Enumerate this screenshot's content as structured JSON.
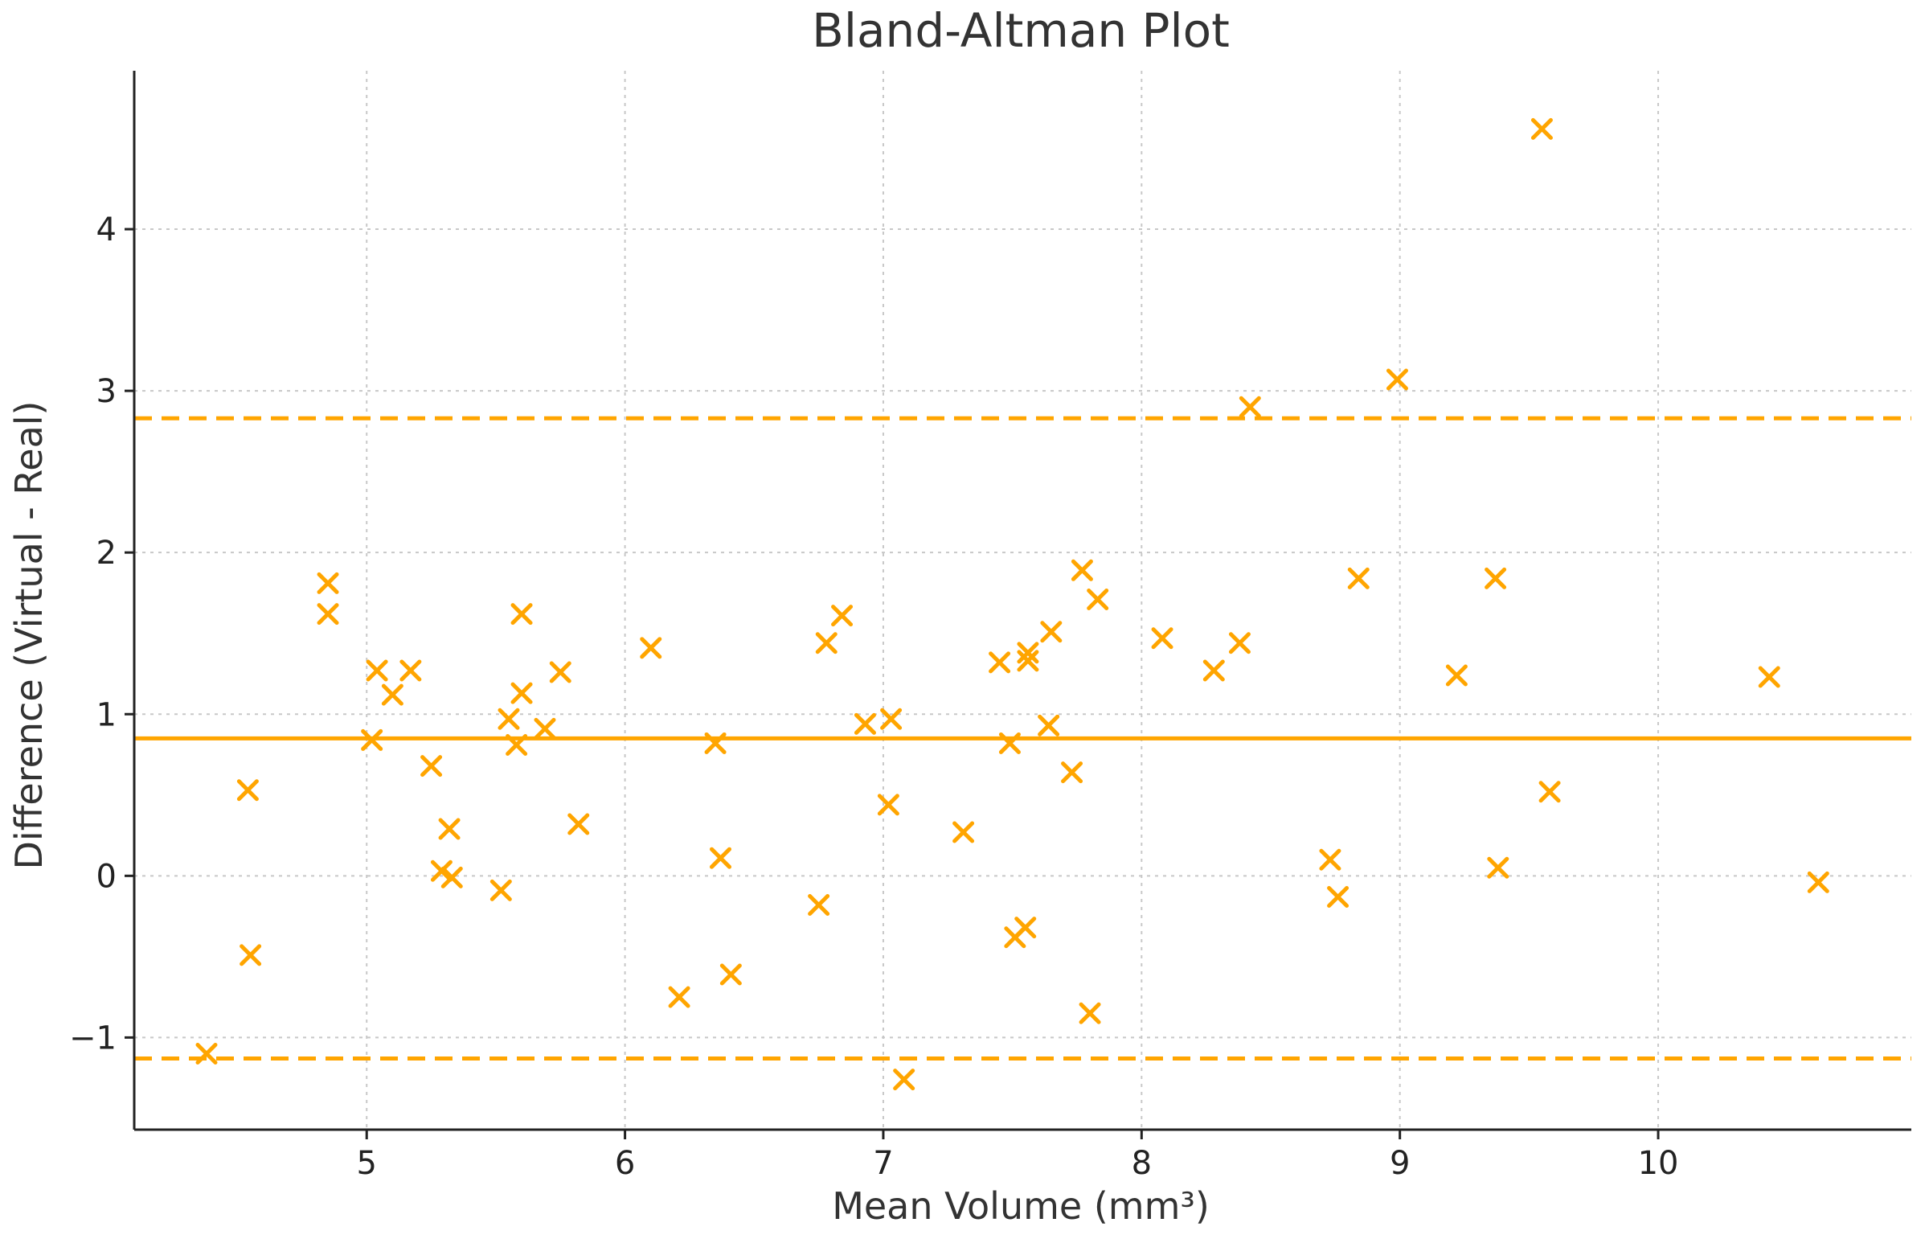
{
  "chart_data": {
    "type": "scatter",
    "title": "Bland-Altman Plot",
    "xlabel": "Mean Volume (mm³)",
    "ylabel": "Difference (Virtual - Real)",
    "xlim": [
      4.1,
      10.98
    ],
    "ylim": [
      -1.57,
      4.98
    ],
    "x_ticks": [
      5,
      6,
      7,
      8,
      9,
      10
    ],
    "x_tick_labels": [
      "5",
      "6",
      "7",
      "8",
      "9",
      "10"
    ],
    "y_ticks": [
      -1,
      0,
      1,
      2,
      3,
      4
    ],
    "y_tick_labels": [
      "−1",
      "0",
      "1",
      "2",
      "3",
      "4"
    ],
    "grid": true,
    "grid_style": "dotted",
    "marker": "x",
    "color": "#ffa500",
    "mean_line": 0.85,
    "upper_limit": 2.83,
    "lower_limit": -1.13,
    "points": [
      {
        "x": 4.38,
        "y": -1.1
      },
      {
        "x": 4.54,
        "y": 0.53
      },
      {
        "x": 4.55,
        "y": -0.49
      },
      {
        "x": 4.85,
        "y": 1.81
      },
      {
        "x": 4.85,
        "y": 1.62
      },
      {
        "x": 5.02,
        "y": 0.84
      },
      {
        "x": 5.04,
        "y": 1.27
      },
      {
        "x": 5.1,
        "y": 1.12
      },
      {
        "x": 5.17,
        "y": 1.27
      },
      {
        "x": 5.25,
        "y": 0.68
      },
      {
        "x": 5.29,
        "y": 0.03
      },
      {
        "x": 5.32,
        "y": 0.29
      },
      {
        "x": 5.33,
        "y": -0.01
      },
      {
        "x": 5.52,
        "y": -0.09
      },
      {
        "x": 5.55,
        "y": 0.97
      },
      {
        "x": 5.58,
        "y": 0.81
      },
      {
        "x": 5.6,
        "y": 1.13
      },
      {
        "x": 5.6,
        "y": 1.62
      },
      {
        "x": 5.69,
        "y": 0.91
      },
      {
        "x": 5.75,
        "y": 1.26
      },
      {
        "x": 5.82,
        "y": 0.32
      },
      {
        "x": 6.1,
        "y": 1.41
      },
      {
        "x": 6.21,
        "y": -0.75
      },
      {
        "x": 6.35,
        "y": 0.82
      },
      {
        "x": 6.37,
        "y": 0.11
      },
      {
        "x": 6.41,
        "y": -0.61
      },
      {
        "x": 6.75,
        "y": -0.18
      },
      {
        "x": 6.78,
        "y": 1.44
      },
      {
        "x": 6.84,
        "y": 1.61
      },
      {
        "x": 6.93,
        "y": 0.94
      },
      {
        "x": 7.02,
        "y": 0.44
      },
      {
        "x": 7.03,
        "y": 0.97
      },
      {
        "x": 7.08,
        "y": -1.26
      },
      {
        "x": 7.31,
        "y": 0.27
      },
      {
        "x": 7.45,
        "y": 1.32
      },
      {
        "x": 7.49,
        "y": 0.82
      },
      {
        "x": 7.51,
        "y": -0.38
      },
      {
        "x": 7.55,
        "y": -0.32
      },
      {
        "x": 7.56,
        "y": 1.38
      },
      {
        "x": 7.56,
        "y": 1.33
      },
      {
        "x": 7.64,
        "y": 0.93
      },
      {
        "x": 7.65,
        "y": 1.51
      },
      {
        "x": 7.73,
        "y": 0.64
      },
      {
        "x": 7.77,
        "y": 1.89
      },
      {
        "x": 7.8,
        "y": -0.85
      },
      {
        "x": 7.83,
        "y": 1.71
      },
      {
        "x": 8.08,
        "y": 1.47
      },
      {
        "x": 8.28,
        "y": 1.27
      },
      {
        "x": 8.38,
        "y": 1.44
      },
      {
        "x": 8.42,
        "y": 2.9
      },
      {
        "x": 8.73,
        "y": 0.1
      },
      {
        "x": 8.76,
        "y": -0.13
      },
      {
        "x": 8.84,
        "y": 1.84
      },
      {
        "x": 8.99,
        "y": 3.07
      },
      {
        "x": 9.22,
        "y": 1.24
      },
      {
        "x": 9.37,
        "y": 1.84
      },
      {
        "x": 9.38,
        "y": 0.05
      },
      {
        "x": 9.55,
        "y": 4.62
      },
      {
        "x": 9.58,
        "y": 0.52
      },
      {
        "x": 10.43,
        "y": 1.23
      },
      {
        "x": 10.62,
        "y": -0.04
      }
    ]
  }
}
